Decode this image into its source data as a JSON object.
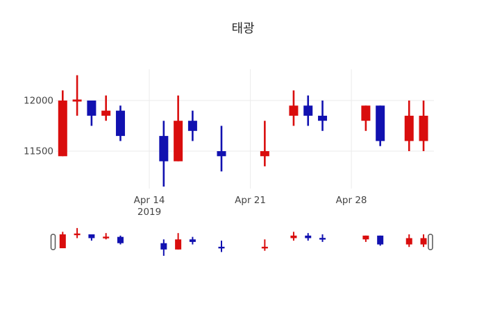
{
  "title": "태광",
  "colors": {
    "up": "#d90d0d",
    "down": "#1111b0",
    "grid": "#ebebeb",
    "tick_text": "#444444",
    "title_text": "#2a2a2a",
    "handle_fill": "#ffffff",
    "handle_border": "#555555",
    "background": "#ffffff"
  },
  "y_axis": {
    "ticks": [
      {
        "label": "12000",
        "value": 12000
      },
      {
        "label": "11500",
        "value": 11500
      }
    ]
  },
  "x_axis": {
    "ticks": [
      {
        "label": "Apr 14",
        "sublabel": "2019",
        "day": 6
      },
      {
        "label": "Apr 21",
        "sublabel": "",
        "day": 13
      },
      {
        "label": "Apr 28",
        "sublabel": "",
        "day": 20
      }
    ]
  },
  "chart_data": {
    "type": "candlestick",
    "title": "태광",
    "xlabel": "",
    "ylabel": "",
    "y_tick_values": [
      11500,
      12000
    ],
    "x_tick_labels": [
      "Apr 14 2019",
      "Apr 21",
      "Apr 28"
    ],
    "ylim_approx": [
      11130,
      12310
    ],
    "grid": true,
    "legend": "none",
    "rangeslider": true,
    "up_color_meaning": "close higher than open (red)",
    "down_color_meaning": "close lower than open (blue)",
    "series": [
      {
        "date": "2019-04-08",
        "day": 0,
        "open": 11450,
        "high": 12100,
        "low": 11450,
        "close": 12000,
        "direction": "up"
      },
      {
        "date": "2019-04-09",
        "day": 1,
        "open": 11990,
        "high": 12250,
        "low": 11850,
        "close": 12010,
        "direction": "up"
      },
      {
        "date": "2019-04-10",
        "day": 2,
        "open": 12000,
        "high": 12000,
        "low": 11750,
        "close": 11850,
        "direction": "down"
      },
      {
        "date": "2019-04-11",
        "day": 3,
        "open": 11850,
        "high": 12050,
        "low": 11800,
        "close": 11900,
        "direction": "up"
      },
      {
        "date": "2019-04-12",
        "day": 4,
        "open": 11900,
        "high": 11950,
        "low": 11600,
        "close": 11650,
        "direction": "down"
      },
      {
        "date": "2019-04-15",
        "day": 7,
        "open": 11650,
        "high": 11800,
        "low": 11150,
        "close": 11400,
        "direction": "down"
      },
      {
        "date": "2019-04-16",
        "day": 8,
        "open": 11400,
        "high": 12050,
        "low": 11400,
        "close": 11800,
        "direction": "up"
      },
      {
        "date": "2019-04-17",
        "day": 9,
        "open": 11800,
        "high": 11900,
        "low": 11600,
        "close": 11700,
        "direction": "down"
      },
      {
        "date": "2019-04-19",
        "day": 11,
        "open": 11500,
        "high": 11750,
        "low": 11300,
        "close": 11450,
        "direction": "down"
      },
      {
        "date": "2019-04-22",
        "day": 14,
        "open": 11450,
        "high": 11800,
        "low": 11350,
        "close": 11500,
        "direction": "up"
      },
      {
        "date": "2019-04-24",
        "day": 16,
        "open": 11850,
        "high": 12100,
        "low": 11750,
        "close": 11950,
        "direction": "up"
      },
      {
        "date": "2019-04-25",
        "day": 17,
        "open": 11950,
        "high": 12050,
        "low": 11750,
        "close": 11850,
        "direction": "down"
      },
      {
        "date": "2019-04-26",
        "day": 18,
        "open": 11850,
        "high": 12000,
        "low": 11700,
        "close": 11800,
        "direction": "down"
      },
      {
        "date": "2019-04-29",
        "day": 21,
        "open": 11800,
        "high": 11950,
        "low": 11700,
        "close": 11950,
        "direction": "up"
      },
      {
        "date": "2019-04-30",
        "day": 22,
        "open": 11950,
        "high": 11950,
        "low": 11550,
        "close": 11600,
        "direction": "down"
      },
      {
        "date": "2019-05-02",
        "day": 24,
        "open": 11600,
        "high": 12000,
        "low": 11500,
        "close": 11850,
        "direction": "up"
      },
      {
        "date": "2019-05-03",
        "day": 25,
        "open": 11600,
        "high": 12000,
        "low": 11500,
        "close": 11850,
        "direction": "up"
      }
    ]
  }
}
